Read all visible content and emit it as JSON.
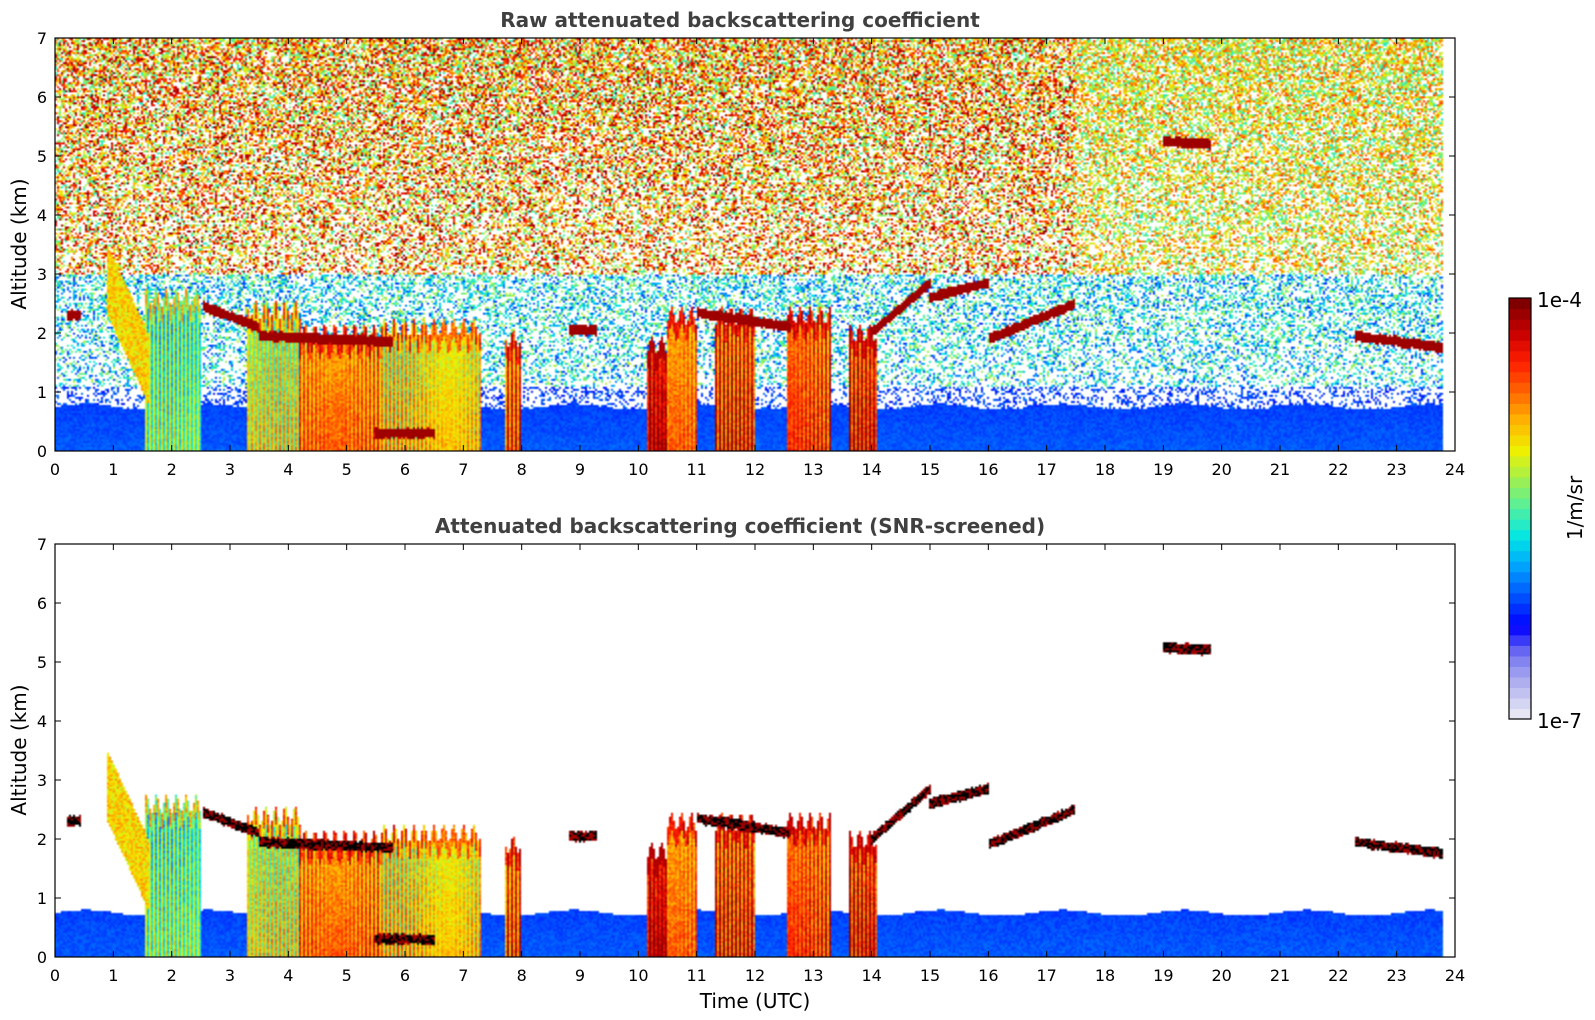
{
  "chart_data": [
    {
      "type": "heatmap",
      "title": "Raw attenuated backscattering coefficient",
      "xlabel": "",
      "ylabel": "Altitude (km)",
      "xlim": [
        0,
        24
      ],
      "ylim": [
        0,
        7
      ],
      "xticks": [
        "0",
        "1",
        "2",
        "3",
        "4",
        "5",
        "6",
        "7",
        "8",
        "9",
        "10",
        "11",
        "12",
        "13",
        "14",
        "15",
        "16",
        "17",
        "18",
        "19",
        "20",
        "21",
        "22",
        "23",
        "24"
      ],
      "yticks": [
        "0",
        "1",
        "2",
        "3",
        "4",
        "5",
        "6",
        "7"
      ],
      "screened": false,
      "background_noise": "speckle increasing with altitude",
      "grid": false
    },
    {
      "type": "heatmap",
      "title": "Attenuated backscattering coefficient (SNR-screened)",
      "xlabel": "Time (UTC)",
      "ylabel": "Altitude (km)",
      "xlim": [
        0,
        24
      ],
      "ylim": [
        0,
        7
      ],
      "xticks": [
        "0",
        "1",
        "2",
        "3",
        "4",
        "5",
        "6",
        "7",
        "8",
        "9",
        "10",
        "11",
        "12",
        "13",
        "14",
        "15",
        "16",
        "17",
        "18",
        "19",
        "20",
        "21",
        "22",
        "23",
        "24"
      ],
      "yticks": [
        "0",
        "1",
        "2",
        "3",
        "4",
        "5",
        "6",
        "7"
      ],
      "screened": true,
      "grid": false
    }
  ],
  "features": {
    "boundary_layer": {
      "top_km": 0.75,
      "end_time_h": 23.8
    },
    "plumes": [
      {
        "t0": 1.55,
        "t1": 2.5,
        "top": 2.6,
        "intensity": 0.55
      },
      {
        "t0": 3.3,
        "t1": 4.2,
        "top": 2.4,
        "intensity": 0.65
      },
      {
        "t0": 4.2,
        "t1": 5.6,
        "top": 2.0,
        "intensity": 0.8
      },
      {
        "t0": 5.6,
        "t1": 7.3,
        "top": 2.1,
        "intensity": 0.7
      },
      {
        "t0": 7.7,
        "t1": 8.0,
        "top": 1.9,
        "intensity": 0.85
      },
      {
        "t0": 10.15,
        "t1": 10.5,
        "top": 1.8,
        "intensity": 0.95
      },
      {
        "t0": 10.5,
        "t1": 11.0,
        "top": 2.3,
        "intensity": 0.8
      },
      {
        "t0": 11.3,
        "t1": 12.0,
        "top": 2.3,
        "intensity": 0.88
      },
      {
        "t0": 12.55,
        "t1": 13.3,
        "top": 2.3,
        "intensity": 0.85
      },
      {
        "t0": 13.6,
        "t1": 14.1,
        "top": 2.0,
        "intensity": 0.9
      }
    ],
    "cloud_layers": [
      {
        "t0": 0.2,
        "t1": 0.45,
        "z": 2.3
      },
      {
        "t0": 2.55,
        "t1": 3.5,
        "z": 2.45,
        "z_end": 2.1
      },
      {
        "t0": 3.5,
        "t1": 5.8,
        "z": 1.95,
        "z_end": 1.85
      },
      {
        "t0": 8.8,
        "t1": 9.3,
        "z": 2.05
      },
      {
        "t0": 11.0,
        "t1": 12.6,
        "z": 2.35,
        "z_end": 2.1
      },
      {
        "t0": 14.0,
        "t1": 15.0,
        "z": 2.0,
        "z_end": 2.85
      },
      {
        "t0": 15.0,
        "t1": 16.0,
        "z": 2.6,
        "z_end": 2.85
      },
      {
        "t0": 16.0,
        "t1": 17.5,
        "z": 1.9,
        "z_end": 2.5
      },
      {
        "t0": 19.0,
        "t1": 19.8,
        "z": 5.25,
        "z_end": 5.2
      },
      {
        "t0": 22.3,
        "t1": 23.8,
        "z": 1.95,
        "z_end": 1.75
      },
      {
        "t0": 5.5,
        "t1": 6.5,
        "z": 0.3
      }
    ],
    "fall_streak": {
      "t0": 0.9,
      "t1": 1.6,
      "z_top": 3.5,
      "z_bottom": 2.0
    }
  },
  "colorbar": {
    "label": "1/m/sr",
    "max_label": "1e-4",
    "min_label": "1e-7",
    "colors": [
      "#e6e6f5",
      "#b4b4f0",
      "#7878f0",
      "#0000ff",
      "#0050ff",
      "#00a0ff",
      "#00e6e6",
      "#50f0a0",
      "#a0f050",
      "#f0f000",
      "#ffb400",
      "#ff6400",
      "#ff1e00",
      "#c80000",
      "#800000"
    ]
  }
}
